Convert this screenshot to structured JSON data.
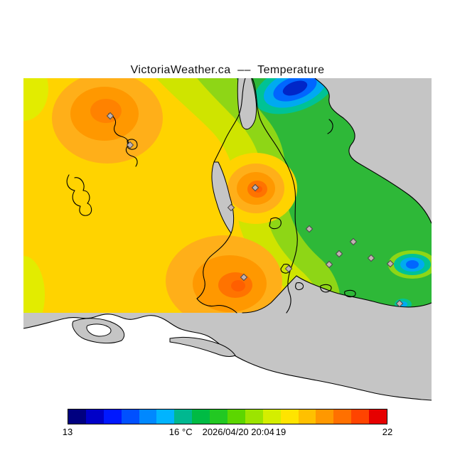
{
  "title": "VictoriaWeather.ca  ––  Temperature",
  "map": {
    "no_data_color": "#c5c5c5",
    "land_color": "#ffffff",
    "coastline_color": "#000000",
    "station_marker": "diamond",
    "field_colors": {
      "cold_dark_blue": "#0026c8",
      "blue": "#0066ff",
      "cyan": "#00aaf0",
      "teal": "#00c295",
      "green": "#2eb838",
      "light_green": "#8ed616",
      "yellow_green": "#cfe400",
      "yellow": "#ffd300",
      "light_orange": "#ffaf19",
      "orange": "#ff9800",
      "deep_orange": "#ff7300",
      "red_orange": "#ff5f00"
    }
  },
  "colorbar": {
    "tick_labels": [
      "13",
      "16",
      "19",
      "22"
    ],
    "unit": "°C",
    "timestamp": "2026/04/20 20:04",
    "segment_colors": [
      "#000080",
      "#0000c8",
      "#0018ff",
      "#0050ff",
      "#0088ff",
      "#00b4ff",
      "#00b890",
      "#00bb44",
      "#22c822",
      "#5cd600",
      "#9ce400",
      "#d4ee00",
      "#ffe400",
      "#ffc000",
      "#ff9800",
      "#ff7000",
      "#ff4400",
      "#e60000"
    ]
  },
  "chart_data": {
    "type": "heatmap",
    "title": "VictoriaWeather.ca  ––  Temperature",
    "variable": "Temperature",
    "unit": "°C",
    "timestamp": "2026/04/20 20:04",
    "colorbar_range": [
      13,
      22
    ],
    "colorbar_ticks": [
      13,
      16,
      19,
      22
    ],
    "legend_position": "bottom"
  }
}
